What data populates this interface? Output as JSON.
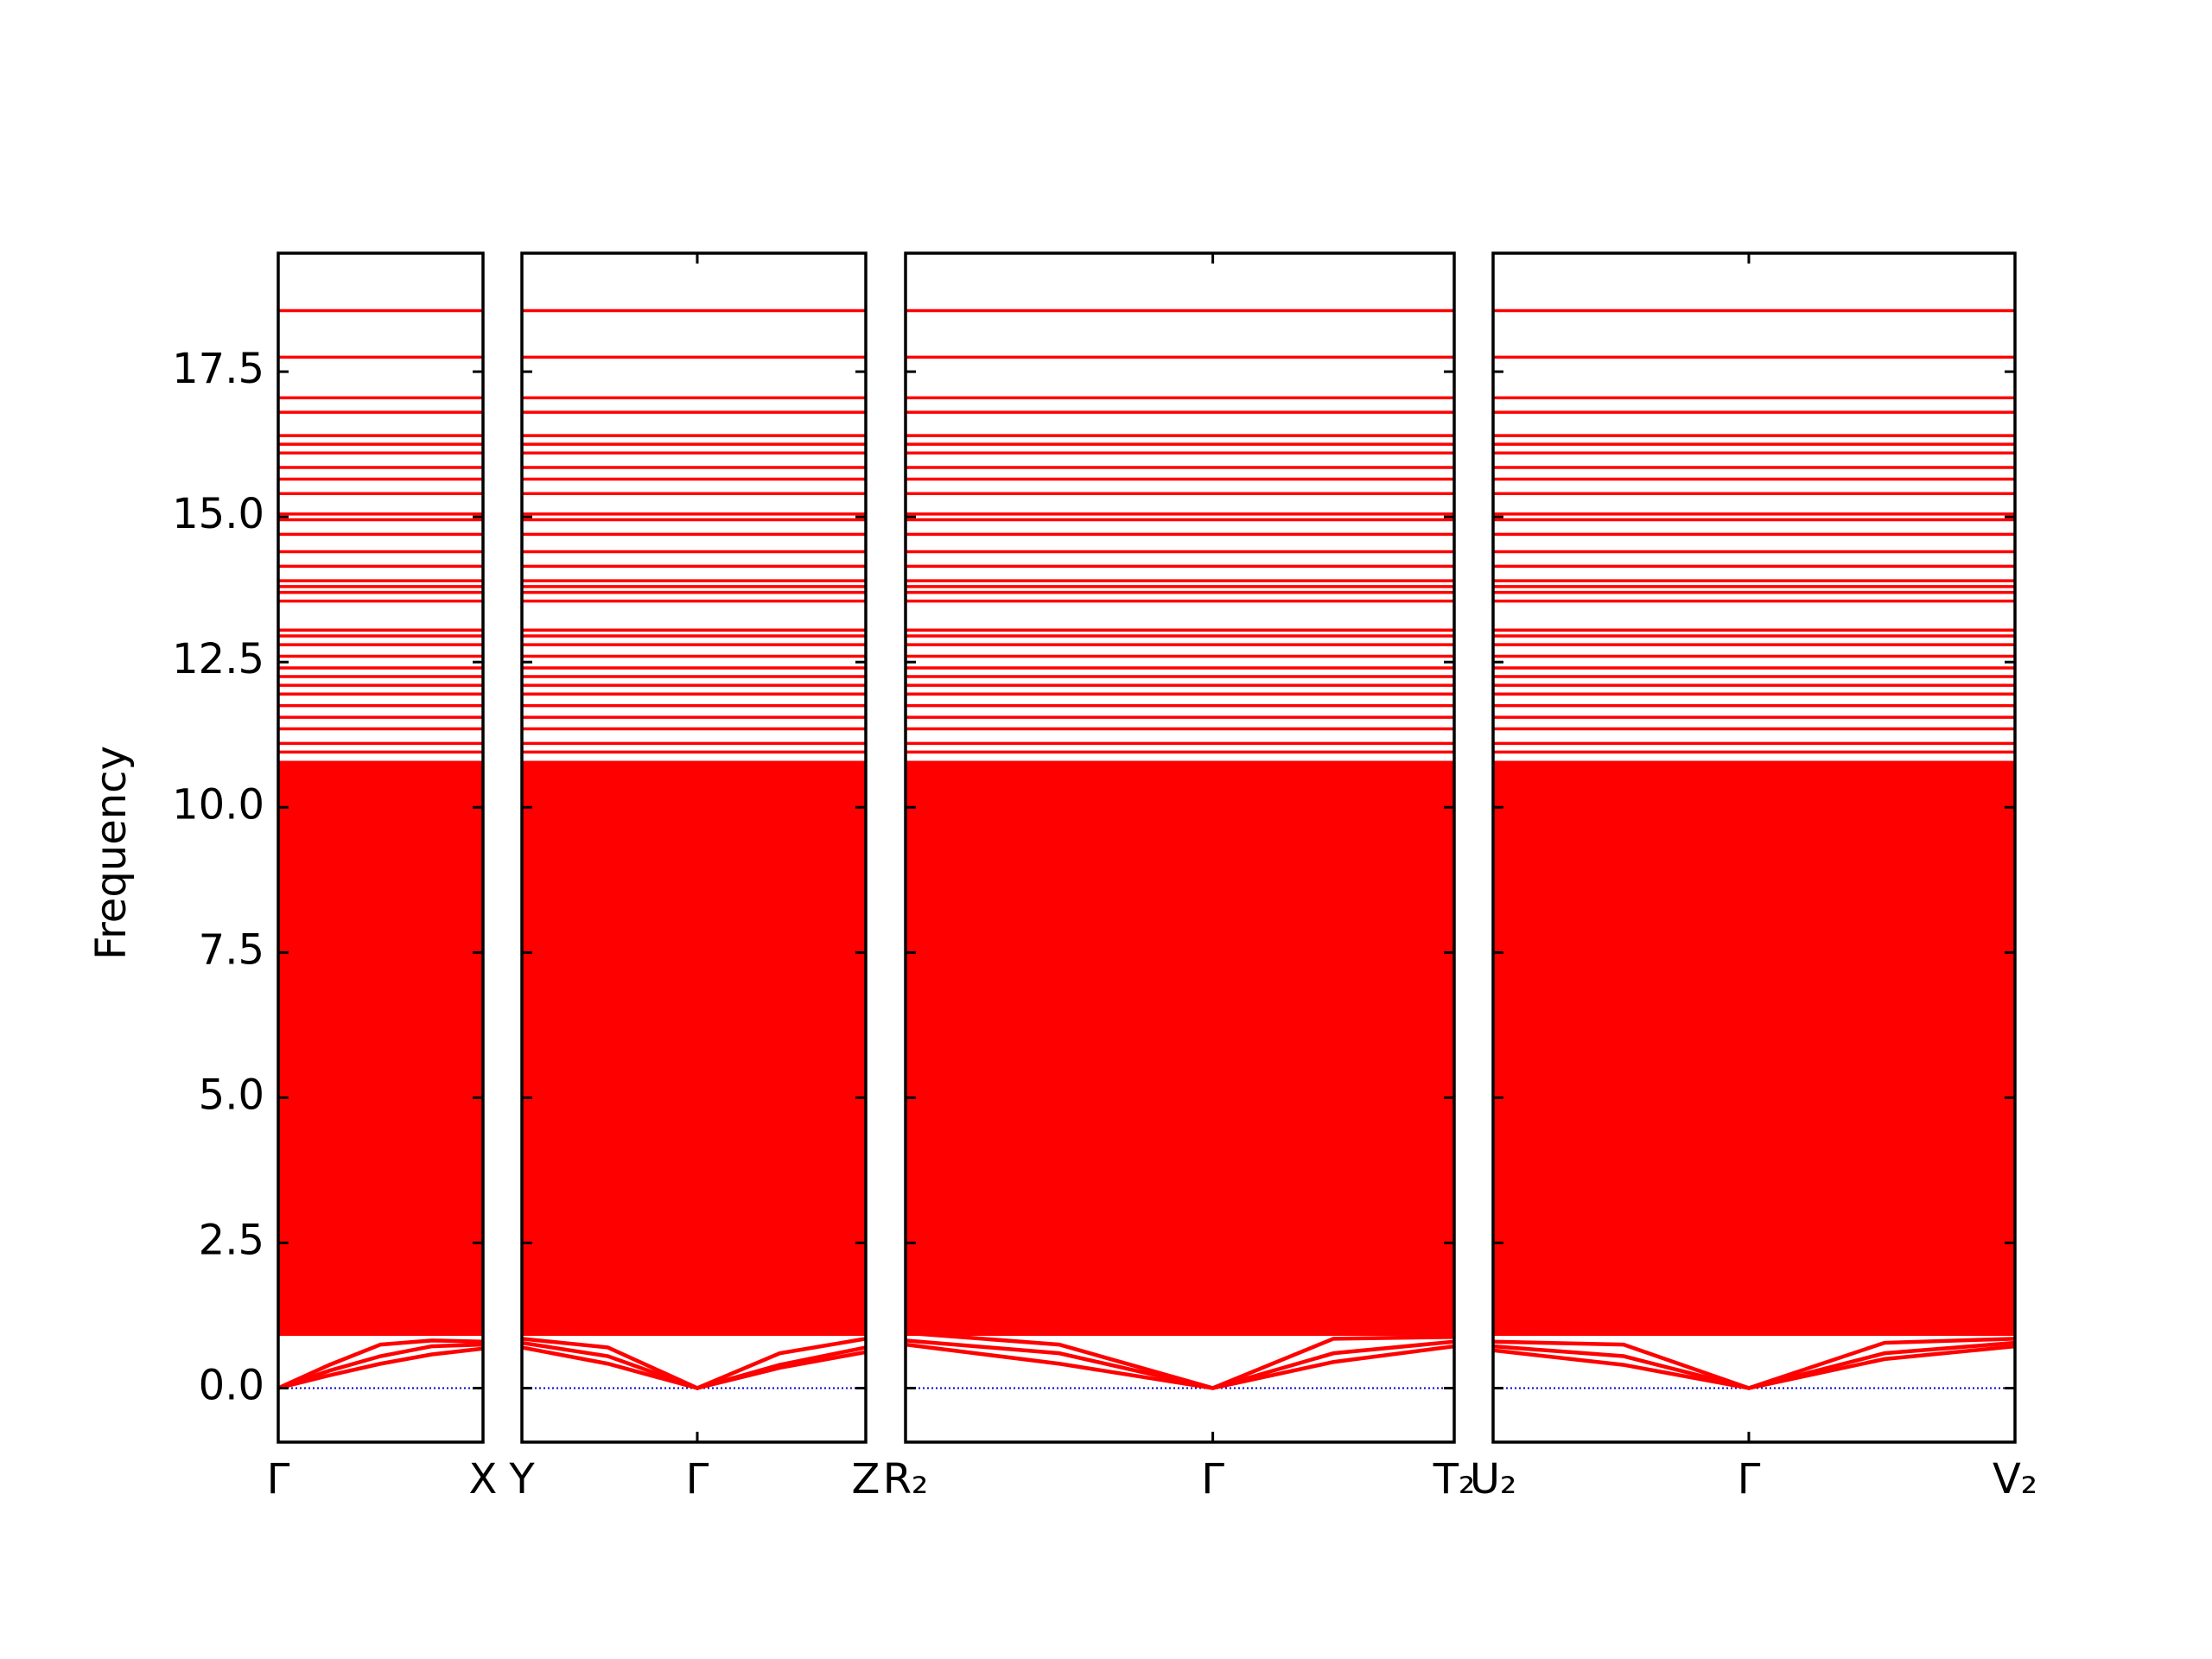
{
  "chart_data": {
    "type": "band",
    "ylabel": "Frequency",
    "ylim": [
      -0.93,
      19.54
    ],
    "yticks": [
      {
        "value": 0,
        "label": "0.0"
      },
      2.5,
      {
        "value": 5,
        "label": "5.0"
      },
      7.5,
      {
        "value": 10,
        "label": "10.0"
      },
      12.5,
      {
        "value": 15,
        "label": "15.0"
      },
      17.5
    ],
    "xlim": [
      0,
      1
    ],
    "color": "#ff0000",
    "zero_line": {
      "value": 0,
      "color": "#0000cc"
    },
    "dense_range": [
      0.9,
      10.8
    ],
    "flat_bands": [
      18.55,
      17.75,
      17.05,
      16.8,
      16.4,
      16.25,
      16.1,
      15.85,
      15.65,
      15.4,
      15.05,
      14.95,
      14.7,
      14.4,
      14.15,
      13.9,
      13.8,
      13.7,
      13.55,
      13.05,
      12.95,
      12.8,
      12.6,
      12.4,
      12.25,
      12.1,
      11.95,
      11.75,
      11.55,
      11.35,
      11.1,
      10.95
    ],
    "panels": [
      {
        "xticks": [
          {
            "value": 0,
            "label": "Γ"
          },
          {
            "value": 1,
            "label": "X"
          }
        ],
        "x": [
          0,
          0.25,
          0.5,
          0.75,
          1
        ],
        "branches": [
          [
            0,
            0.22,
            0.42,
            0.58,
            0.68
          ],
          [
            0,
            0.3,
            0.55,
            0.72,
            0.75
          ],
          [
            0,
            0.4,
            0.75,
            0.82,
            0.8
          ]
        ]
      },
      {
        "xticks": [
          {
            "value": 0,
            "label": "Y"
          },
          {
            "value": 0.51,
            "label": "Γ"
          },
          {
            "value": 1,
            "label": "Z"
          }
        ],
        "x": [
          0,
          0.25,
          0.51,
          0.75,
          1
        ],
        "branches": [
          [
            0.7,
            0.42,
            0,
            0.35,
            0.62
          ],
          [
            0.78,
            0.55,
            0,
            0.4,
            0.7
          ],
          [
            0.85,
            0.7,
            0,
            0.6,
            0.85
          ]
        ]
      },
      {
        "xticks": [
          {
            "value": 0,
            "label": "R₂"
          },
          {
            "value": 0.56,
            "label": "Γ"
          },
          {
            "value": 1,
            "label": "T₂"
          }
        ],
        "x": [
          0,
          0.28,
          0.56,
          0.78,
          1
        ],
        "branches": [
          [
            0.75,
            0.42,
            0,
            0.45,
            0.72
          ],
          [
            0.82,
            0.6,
            0,
            0.6,
            0.8
          ],
          [
            0.95,
            0.75,
            0,
            0.85,
            0.88
          ]
        ]
      },
      {
        "xticks": [
          {
            "value": 0,
            "label": "U₂"
          },
          {
            "value": 0.49,
            "label": "Γ"
          },
          {
            "value": 1,
            "label": "V₂"
          }
        ],
        "x": [
          0,
          0.25,
          0.49,
          0.75,
          1
        ],
        "branches": [
          [
            0.65,
            0.4,
            0,
            0.5,
            0.72
          ],
          [
            0.72,
            0.55,
            0,
            0.6,
            0.78
          ],
          [
            0.8,
            0.75,
            0,
            0.78,
            0.85
          ]
        ]
      }
    ]
  }
}
